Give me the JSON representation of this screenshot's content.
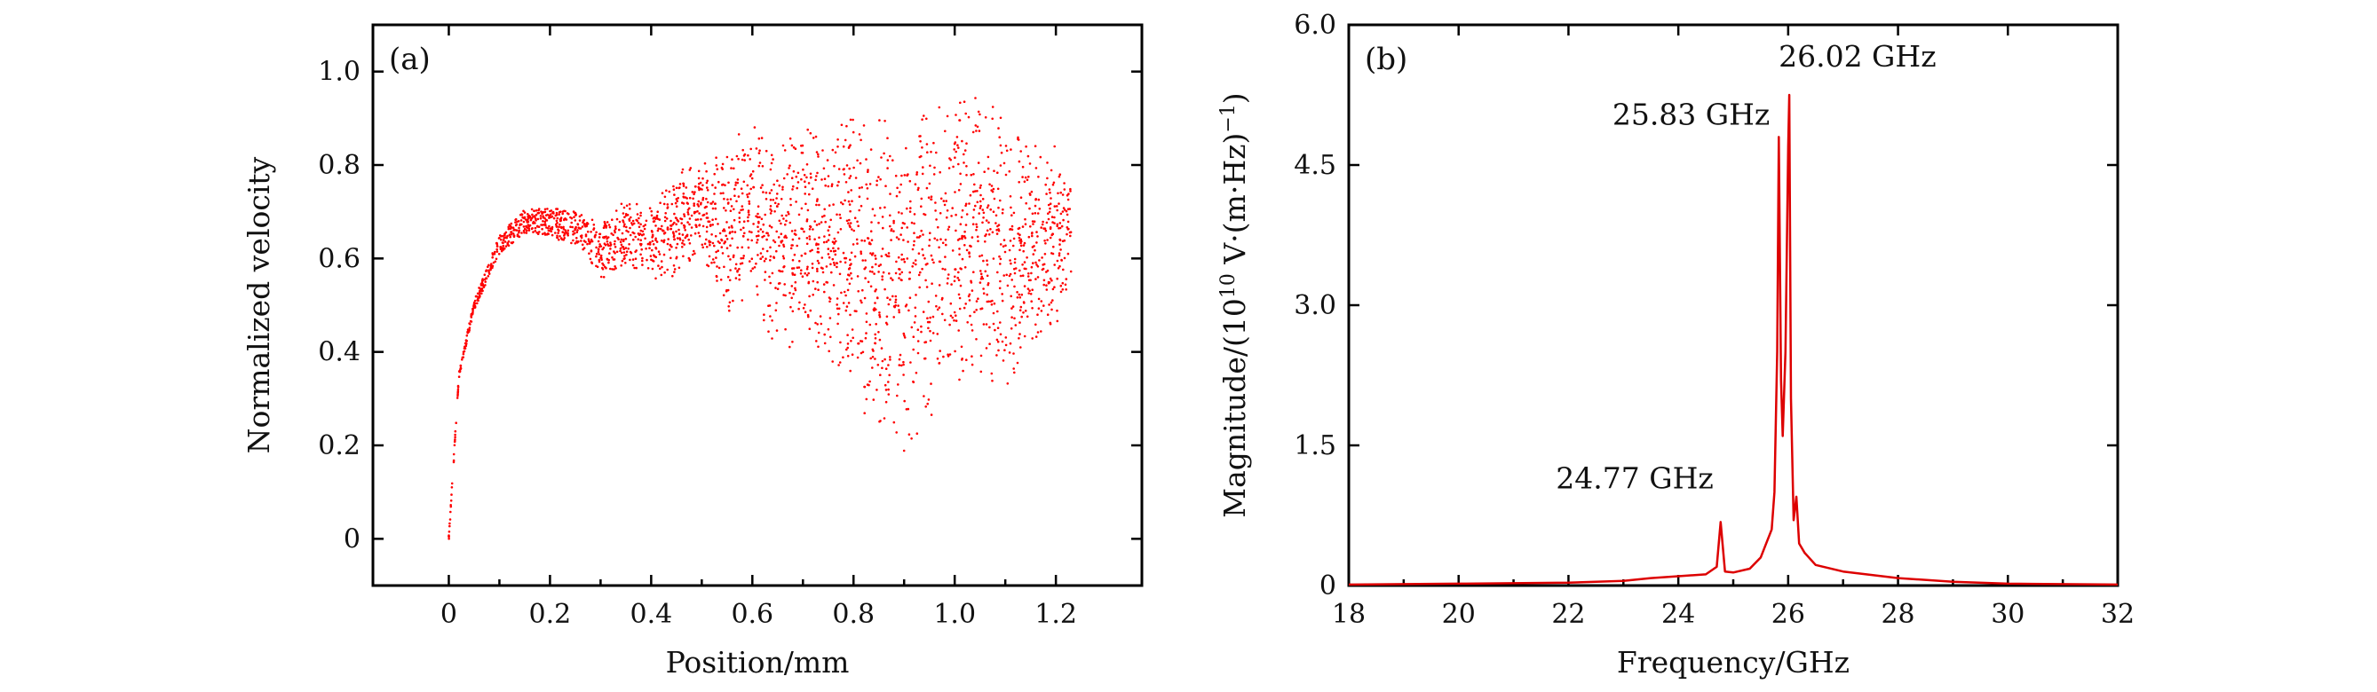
{
  "figure_panels": [
    "(a)",
    "(b)"
  ],
  "chart_data": [
    {
      "type": "scatter",
      "panel": "(a)",
      "xlabel": "Position/mm",
      "ylabel": "Normalized velocity",
      "xlim": [
        -0.15,
        1.37
      ],
      "ylim": [
        -0.1,
        1.1
      ],
      "xticks": [
        "0",
        "0.2",
        "0.4",
        "0.6",
        "0.8",
        "1.0",
        "1.2"
      ],
      "yticks": [
        "0",
        "0.2",
        "0.4",
        "0.6",
        "0.8",
        "1.0"
      ],
      "xtick_values": [
        0,
        0.2,
        0.4,
        0.6,
        0.8,
        1.0,
        1.2
      ],
      "ytick_values": [
        0,
        0.2,
        0.4,
        0.6,
        0.8,
        1.0
      ],
      "series": [
        {
          "color": "#ff0000",
          "description_points": {
            "x": [
              0,
              0.02,
              0.05,
              0.1,
              0.15,
              0.2,
              0.25,
              0.3,
              0.35,
              0.4,
              0.45,
              0.5,
              0.55,
              0.6,
              0.65,
              0.7,
              0.75,
              0.8,
              0.85,
              0.9,
              0.95,
              1.0,
              1.05,
              1.1,
              1.15,
              1.2,
              1.23
            ],
            "y_center": [
              0,
              0.35,
              0.5,
              0.63,
              0.68,
              0.68,
              0.66,
              0.62,
              0.67,
              0.64,
              0.68,
              0.72,
              0.66,
              0.72,
              0.6,
              0.65,
              0.6,
              0.62,
              0.6,
              0.56,
              0.66,
              0.62,
              0.68,
              0.63,
              0.7,
              0.72,
              0.7
            ],
            "y_min": [
              0,
              0.35,
              0.5,
              0.62,
              0.66,
              0.66,
              0.63,
              0.55,
              0.56,
              0.55,
              0.56,
              0.6,
              0.47,
              0.52,
              0.4,
              0.42,
              0.38,
              0.3,
              0.22,
              0.15,
              0.25,
              0.3,
              0.35,
              0.29,
              0.38,
              0.45,
              0.55
            ],
            "y_max": [
              0,
              0.35,
              0.51,
              0.65,
              0.7,
              0.71,
              0.7,
              0.68,
              0.73,
              0.72,
              0.79,
              0.81,
              0.84,
              0.9,
              0.86,
              0.9,
              0.87,
              0.93,
              0.92,
              0.94,
              0.96,
              0.93,
              1.0,
              0.88,
              0.86,
              0.85,
              0.78
            ]
          }
        }
      ]
    },
    {
      "type": "line",
      "panel": "(b)",
      "xlabel": "Frequency/GHz",
      "ylabel": "Magnitude/(10",
      "ylabel_sup1": "10",
      "ylabel_mid": " V·(m·Hz)",
      "ylabel_sup2": "−1",
      "ylabel_end": ")",
      "xlim": [
        18,
        32
      ],
      "ylim": [
        0,
        6.0
      ],
      "xticks": [
        "18",
        "20",
        "22",
        "24",
        "26",
        "28",
        "30",
        "32"
      ],
      "yticks": [
        "0",
        "1.5",
        "3.0",
        "4.5",
        "6.0"
      ],
      "xtick_values": [
        18,
        20,
        22,
        24,
        26,
        28,
        30,
        32
      ],
      "ytick_values": [
        0,
        1.5,
        3.0,
        4.5,
        6.0
      ],
      "series": [
        {
          "color": "#dd0000",
          "x": [
            18,
            20,
            22,
            23,
            23.5,
            24,
            24.5,
            24.7,
            24.77,
            24.85,
            25,
            25.3,
            25.5,
            25.6,
            25.7,
            25.75,
            25.8,
            25.83,
            25.87,
            25.9,
            25.95,
            26.0,
            26.02,
            26.05,
            26.1,
            26.15,
            26.2,
            26.3,
            26.5,
            27,
            28,
            29,
            30,
            32
          ],
          "y": [
            0.01,
            0.02,
            0.03,
            0.05,
            0.08,
            0.1,
            0.12,
            0.2,
            0.68,
            0.15,
            0.14,
            0.18,
            0.3,
            0.45,
            0.6,
            1.0,
            2.5,
            4.8,
            2.2,
            1.6,
            2.5,
            4.7,
            5.25,
            2.0,
            0.7,
            0.95,
            0.45,
            0.35,
            0.22,
            0.15,
            0.08,
            0.04,
            0.02,
            0.01
          ]
        }
      ],
      "annotations": [
        {
          "text": "26.02 GHz",
          "x": 26.02,
          "y": 5.25
        },
        {
          "text": "25.83 GHz",
          "x": 25.83,
          "y": 4.8
        },
        {
          "text": "24.77 GHz",
          "x": 24.77,
          "y": 0.68
        }
      ]
    }
  ]
}
